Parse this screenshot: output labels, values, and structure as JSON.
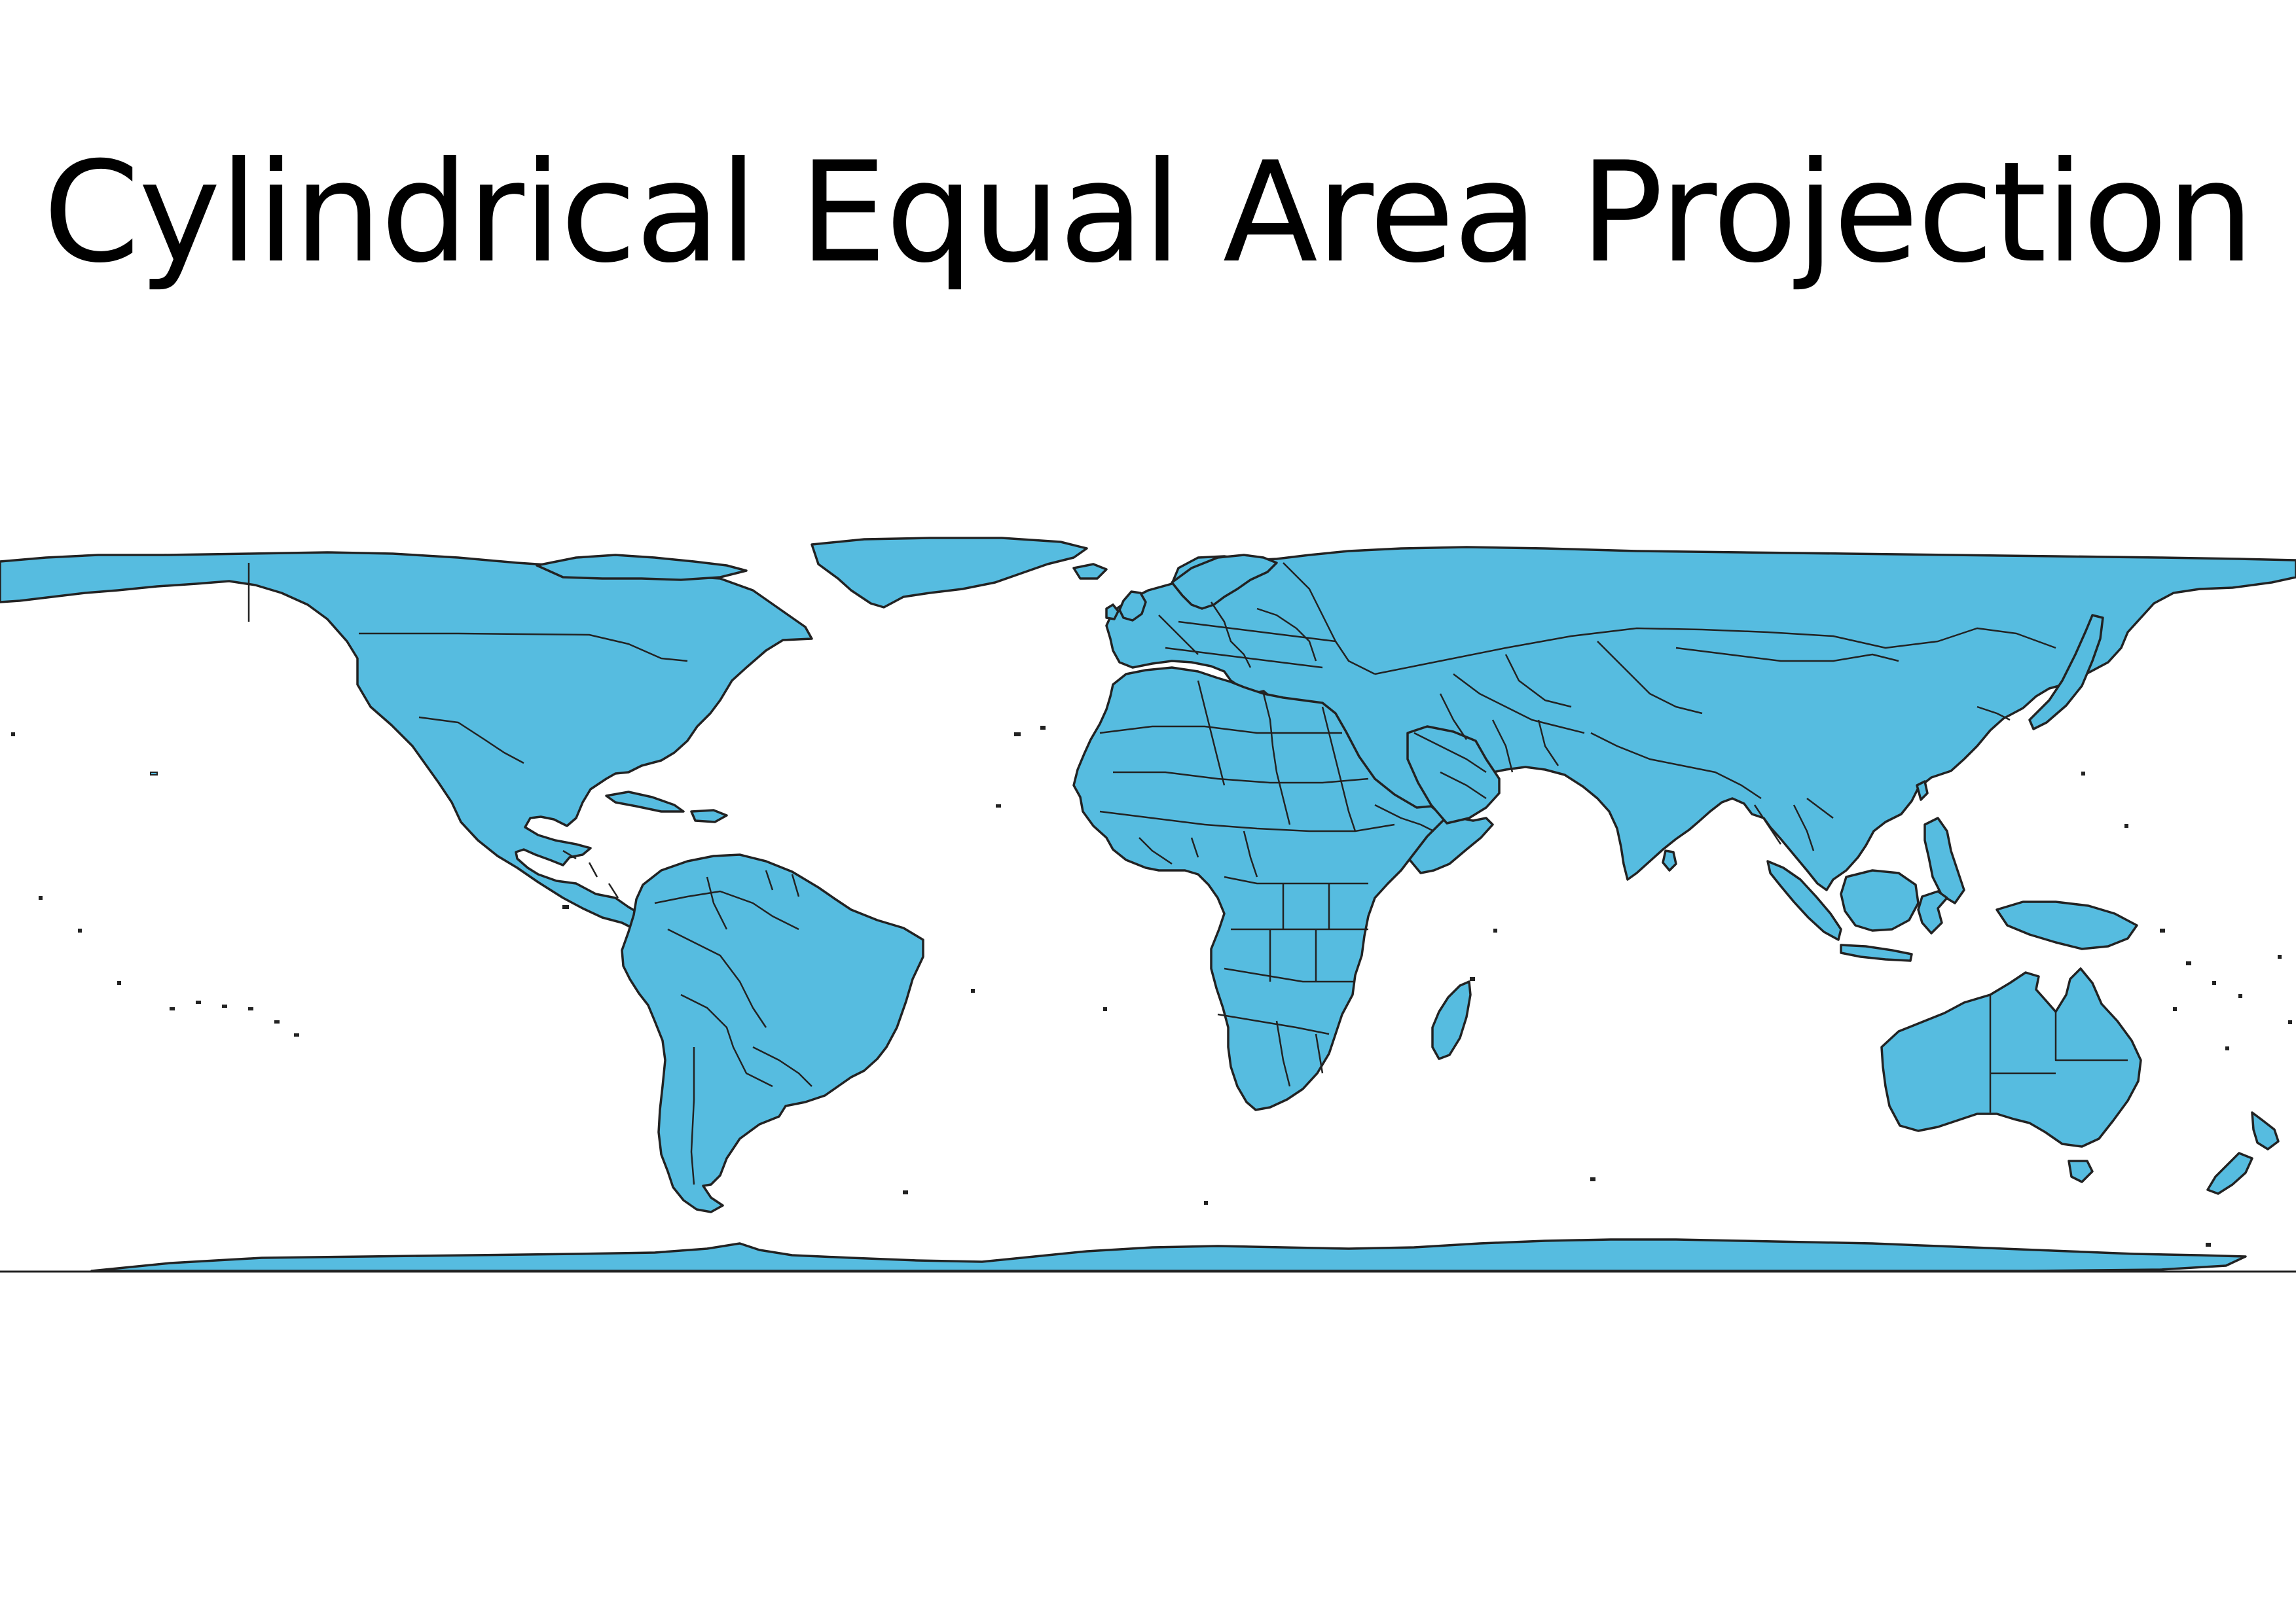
{
  "title": "Cylindrical Equal Area Projection",
  "colors": {
    "land": "#56BCE0",
    "outline": "#222222",
    "background": "#ffffff"
  },
  "map": {
    "projection": "Cylindrical Equal Area",
    "layers": [
      "countries"
    ],
    "landmasses": [
      "North America",
      "Greenland",
      "South America",
      "Europe",
      "Africa",
      "Asia",
      "Australia",
      "New Zealand",
      "Antarctica"
    ]
  }
}
